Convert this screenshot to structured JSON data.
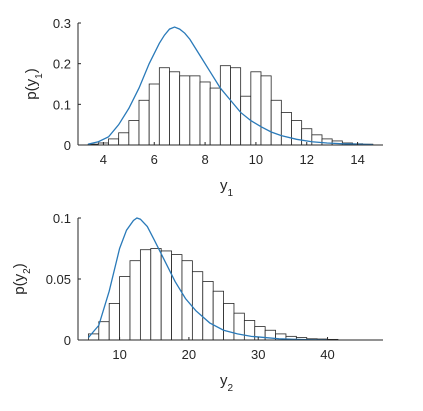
{
  "chart_data": [
    {
      "type": "bar",
      "xlabel": {
        "base": "y",
        "sub": "1"
      },
      "ylabel": {
        "pre": "p(y",
        "sub": "1",
        "post": ")"
      },
      "xlim": [
        3,
        15
      ],
      "ylim": [
        0,
        0.3
      ],
      "xticks": [
        "4",
        "6",
        "8",
        "10",
        "12",
        "14"
      ],
      "xtick_values": [
        4,
        6,
        8,
        10,
        12,
        14
      ],
      "yticks": [
        "0",
        "0.1",
        "0.2",
        "0.3"
      ],
      "ytick_values": [
        0,
        0.1,
        0.2,
        0.3
      ],
      "bin_edges": [
        3.4,
        3.8,
        4.2,
        4.6,
        5.0,
        5.4,
        5.8,
        6.2,
        6.6,
        7.0,
        7.4,
        7.8,
        8.2,
        8.6,
        9.0,
        9.4,
        9.8,
        10.2,
        10.6,
        11.0,
        11.4,
        11.8,
        12.2,
        12.6,
        13.0,
        13.4,
        13.8,
        14.2,
        14.6
      ],
      "bin_values": [
        0.002,
        0.005,
        0.015,
        0.03,
        0.06,
        0.11,
        0.15,
        0.19,
        0.18,
        0.17,
        0.17,
        0.155,
        0.14,
        0.195,
        0.19,
        0.12,
        0.18,
        0.17,
        0.11,
        0.08,
        0.06,
        0.04,
        0.025,
        0.015,
        0.01,
        0.005,
        0.003,
        0.002
      ],
      "curve": {
        "x": [
          3.4,
          3.8,
          4.2,
          4.6,
          5.0,
          5.4,
          5.8,
          6.2,
          6.4,
          6.6,
          6.8,
          7.0,
          7.2,
          7.4,
          7.8,
          8.2,
          8.6,
          9.0,
          9.4,
          9.8,
          10.2,
          10.6,
          11.0,
          11.6,
          12.2,
          12.8,
          13.4,
          14.0,
          14.6
        ],
        "y": [
          0.002,
          0.008,
          0.02,
          0.05,
          0.09,
          0.14,
          0.2,
          0.25,
          0.27,
          0.285,
          0.29,
          0.285,
          0.275,
          0.26,
          0.22,
          0.18,
          0.14,
          0.11,
          0.08,
          0.06,
          0.045,
          0.032,
          0.023,
          0.014,
          0.008,
          0.005,
          0.003,
          0.002,
          0.001
        ]
      }
    },
    {
      "type": "bar",
      "xlabel": {
        "base": "y",
        "sub": "2"
      },
      "ylabel": {
        "pre": "p(y",
        "sub": "2",
        "post": ")"
      },
      "xlim": [
        4,
        48
      ],
      "ylim": [
        0,
        0.1
      ],
      "xticks": [
        "10",
        "20",
        "30",
        "40"
      ],
      "xtick_values": [
        10,
        20,
        30,
        40
      ],
      "yticks": [
        "0",
        "0.05",
        "0.1"
      ],
      "ytick_values": [
        0,
        0.05,
        0.1
      ],
      "bin_edges": [
        5.5,
        7.0,
        8.5,
        10.0,
        11.5,
        13.0,
        14.5,
        16.0,
        17.5,
        19.0,
        20.5,
        22.0,
        23.5,
        25.0,
        26.5,
        28.0,
        29.5,
        31.0,
        32.5,
        34.0,
        35.5,
        37.0,
        38.5,
        40.0,
        41.5
      ],
      "bin_values": [
        0.005,
        0.015,
        0.03,
        0.052,
        0.065,
        0.074,
        0.075,
        0.073,
        0.07,
        0.065,
        0.056,
        0.048,
        0.04,
        0.03,
        0.022,
        0.016,
        0.011,
        0.008,
        0.005,
        0.003,
        0.002,
        0.001,
        0.0008,
        0.0005
      ],
      "curve": {
        "x": [
          5.5,
          7.0,
          8.5,
          10.0,
          11.0,
          12.0,
          12.5,
          13.0,
          14.0,
          15.0,
          16.5,
          18.0,
          19.5,
          21.0,
          23.0,
          25.0,
          27.0,
          29.0,
          31.0,
          33.0,
          35.0,
          37.0,
          40.0
        ],
        "y": [
          0.002,
          0.012,
          0.04,
          0.075,
          0.09,
          0.098,
          0.1,
          0.099,
          0.093,
          0.082,
          0.065,
          0.048,
          0.034,
          0.024,
          0.014,
          0.008,
          0.005,
          0.003,
          0.002,
          0.001,
          0.0006,
          0.0003,
          0.0001
        ]
      }
    }
  ]
}
